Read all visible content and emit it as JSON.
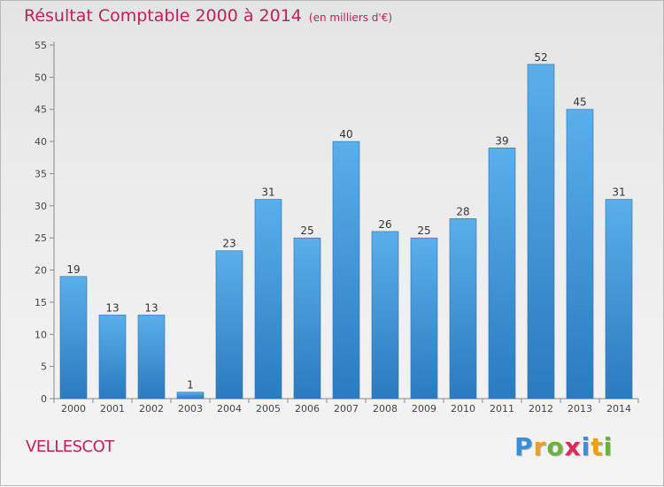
{
  "chart_data": {
    "type": "bar",
    "title": "Résultat Comptable 2000 à 2014",
    "subtitle": "(en milliers d'€)",
    "categories": [
      "2000",
      "2001",
      "2002",
      "2003",
      "2004",
      "2005",
      "2006",
      "2007",
      "2008",
      "2009",
      "2010",
      "2011",
      "2012",
      "2013",
      "2014"
    ],
    "values": [
      19,
      13,
      13,
      1,
      23,
      31,
      25,
      40,
      26,
      25,
      28,
      39,
      52,
      45,
      31
    ],
    "data_labels": [
      "19",
      "13",
      "13",
      "1",
      "23",
      "31",
      "25",
      "40",
      "26",
      "25",
      "28",
      "39",
      "52",
      "45",
      "31"
    ],
    "ylim": [
      0,
      55
    ],
    "yticks": [
      0,
      5,
      10,
      15,
      20,
      25,
      30,
      35,
      40,
      45,
      50,
      55
    ],
    "grid": false,
    "bar_color_top": "#5aaeea",
    "bar_color_bottom": "#2b7bbf",
    "title_color": "#c0205a"
  },
  "footer": {
    "commune": "VELLESCOT",
    "brand": "Proxiti",
    "brand_colors": [
      "#3a8fd6",
      "#e8a11a",
      "#6cb33e",
      "#d6305a",
      "#3a8fd6",
      "#e8a11a",
      "#6cb33e"
    ]
  }
}
